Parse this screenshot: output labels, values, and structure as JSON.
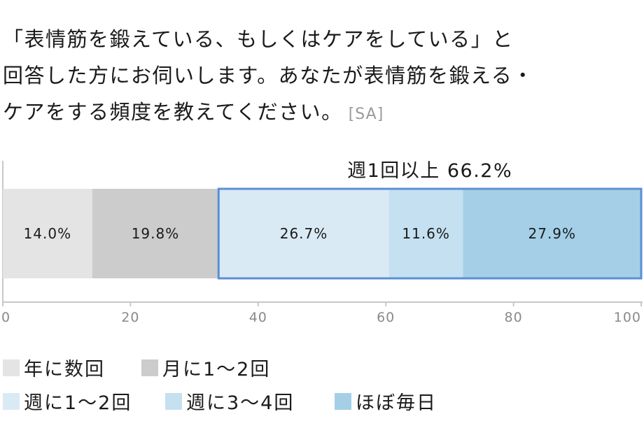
{
  "question": {
    "lines": [
      "「表情筋を鍛えている、もしくはケアをしている」と",
      "回答した方にお伺いします。あなたが表情筋を鍛える・",
      "ケアをする頻度を教えてください。"
    ],
    "tag": "[SA]"
  },
  "colors": {
    "yearly": "#e4e4e4",
    "monthly": "#cccccc",
    "weekly12": "#daeaf5",
    "weekly34": "#c4e0f1",
    "daily": "#a4cfe7",
    "group_border": "#5b8fd4",
    "axis": "#c8c8c8"
  },
  "chart_data": {
    "type": "bar",
    "orientation": "horizontal-stacked-100",
    "xlim": [
      0,
      100
    ],
    "xticks": [
      "0",
      "20",
      "40",
      "60",
      "80",
      "100"
    ],
    "grid": false,
    "series": [
      {
        "name": "年に数回",
        "value": 14.0,
        "label": "14.0%",
        "color_key": "yearly"
      },
      {
        "name": "月に1～2回",
        "value": 19.8,
        "label": "19.8%",
        "color_key": "monthly"
      },
      {
        "name": "週に1～2回",
        "value": 26.7,
        "label": "26.7%",
        "color_key": "weekly12"
      },
      {
        "name": "週に3～4回",
        "value": 11.6,
        "label": "11.6%",
        "color_key": "weekly34"
      },
      {
        "name": "ほぼ毎日",
        "value": 27.9,
        "label": "27.9%",
        "color_key": "daily"
      }
    ],
    "annotation": {
      "text": "週1回以上 66.2%",
      "from": 33.8,
      "to": 100,
      "value": 66.2
    },
    "legend": "bottom"
  }
}
